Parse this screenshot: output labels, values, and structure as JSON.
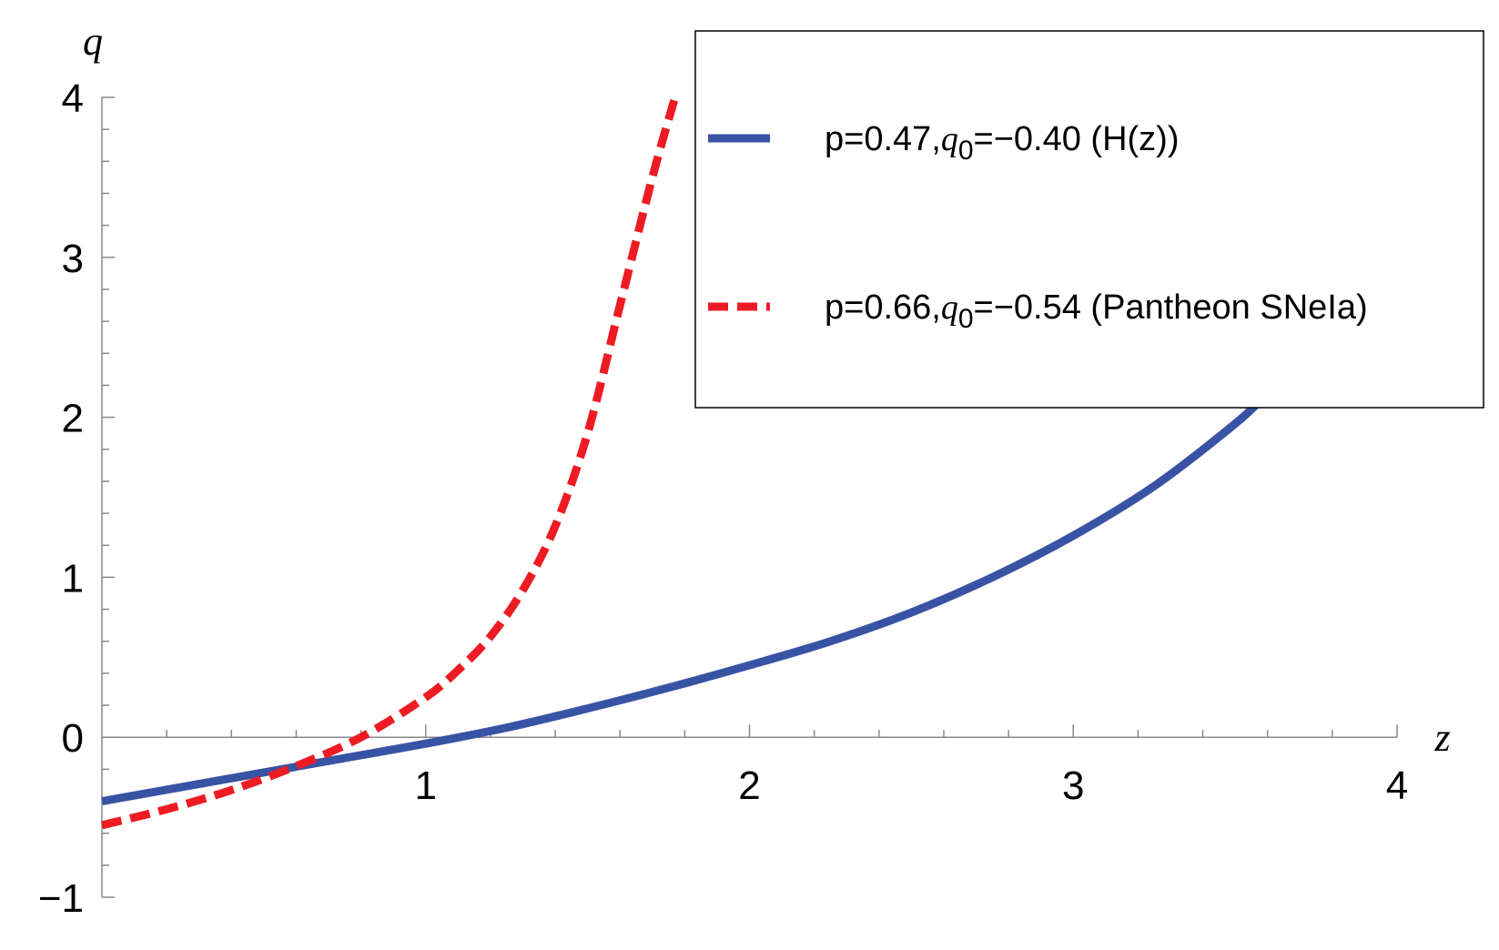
{
  "chart_data": {
    "type": "line",
    "xlabel": "z",
    "ylabel": "q",
    "xlim": [
      0,
      4
    ],
    "ylim": [
      -1,
      4
    ],
    "x_ticks": [
      "1",
      "2",
      "3",
      "4"
    ],
    "y_ticks": [
      "−1",
      "0",
      "1",
      "2",
      "3",
      "4"
    ],
    "x_tick_values": [
      1,
      2,
      3,
      4
    ],
    "y_tick_values": [
      -1,
      0,
      1,
      2,
      3,
      4
    ],
    "grid": false,
    "legend_position": "top-right",
    "series": [
      {
        "name": "p=0.47,q0=−0.40 (H(z))",
        "legend_parts": [
          "p=0.47,",
          "q",
          "0",
          "=−0.40 (H(z))"
        ],
        "color": "#3953a4",
        "style": "solid",
        "x": [
          0,
          0.25,
          0.5,
          0.75,
          1.0,
          1.25,
          1.5,
          1.75,
          2.0,
          2.25,
          2.5,
          2.75,
          3.0,
          3.25,
          3.5,
          3.6
        ],
        "y": [
          -0.4,
          -0.31,
          -0.22,
          -0.13,
          -0.04,
          0.06,
          0.18,
          0.31,
          0.45,
          0.6,
          0.78,
          1.0,
          1.26,
          1.57,
          1.96,
          2.15
        ]
      },
      {
        "name": "p=0.66,q0=−0.54 (Pantheon SNeIa)",
        "legend_parts": [
          "p=0.66,",
          "q",
          "0",
          "=−0.54 (Pantheon SNeIa)"
        ],
        "color": "#ed1c24",
        "style": "dashed",
        "x": [
          0,
          0.2,
          0.4,
          0.6,
          0.8,
          1.0,
          1.1,
          1.2,
          1.3,
          1.4,
          1.5,
          1.6,
          1.7,
          1.77
        ],
        "y": [
          -0.55,
          -0.45,
          -0.33,
          -0.18,
          0.0,
          0.25,
          0.42,
          0.63,
          0.92,
          1.32,
          1.9,
          2.7,
          3.5,
          4.0
        ]
      }
    ]
  }
}
